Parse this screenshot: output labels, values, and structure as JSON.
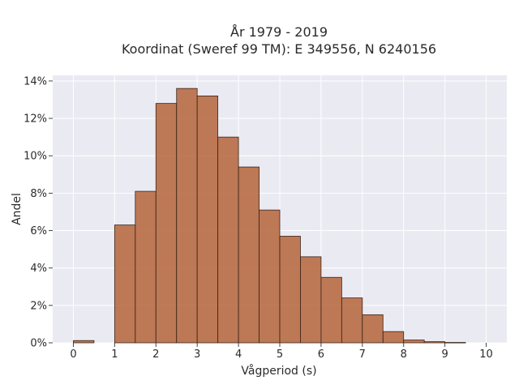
{
  "chart_data": {
    "type": "bar",
    "title_lines": [
      "År 1979 - 2019",
      "Koordinat (Sweref 99 TM): E 349556, N 6240156"
    ],
    "xlabel": "Vågperiod (s)",
    "ylabel": "Andel",
    "bin_width": 0.5,
    "bins": [
      {
        "start": 0.0,
        "value": 0.12
      },
      {
        "start": 0.5,
        "value": 0.0
      },
      {
        "start": 1.0,
        "value": 6.3
      },
      {
        "start": 1.5,
        "value": 8.1
      },
      {
        "start": 2.0,
        "value": 12.8
      },
      {
        "start": 2.5,
        "value": 13.6
      },
      {
        "start": 3.0,
        "value": 13.2
      },
      {
        "start": 3.5,
        "value": 11.0
      },
      {
        "start": 4.0,
        "value": 9.4
      },
      {
        "start": 4.5,
        "value": 7.1
      },
      {
        "start": 5.0,
        "value": 5.7
      },
      {
        "start": 5.5,
        "value": 4.6
      },
      {
        "start": 6.0,
        "value": 3.5
      },
      {
        "start": 6.5,
        "value": 2.4
      },
      {
        "start": 7.0,
        "value": 1.5
      },
      {
        "start": 7.5,
        "value": 0.6
      },
      {
        "start": 8.0,
        "value": 0.15
      },
      {
        "start": 8.5,
        "value": 0.06
      },
      {
        "start": 9.0,
        "value": 0.02
      }
    ],
    "xlim": [
      -0.5,
      10.5
    ],
    "ylim": [
      0,
      14.3
    ],
    "xticks": [
      0,
      1,
      2,
      3,
      4,
      5,
      6,
      7,
      8,
      9,
      10
    ],
    "xtick_labels": [
      "0",
      "1",
      "2",
      "3",
      "4",
      "5",
      "6",
      "7",
      "8",
      "9",
      "10"
    ],
    "yticks": [
      0,
      2,
      4,
      6,
      8,
      10,
      12,
      14
    ],
    "ytick_labels": [
      "0%",
      "2%",
      "4%",
      "6%",
      "8%",
      "10%",
      "12%",
      "14%"
    ],
    "grid": true,
    "colors": {
      "bar": "#b5643b",
      "bar_edge": "#3a2418",
      "plot_bg": "#eaeaf2"
    }
  }
}
